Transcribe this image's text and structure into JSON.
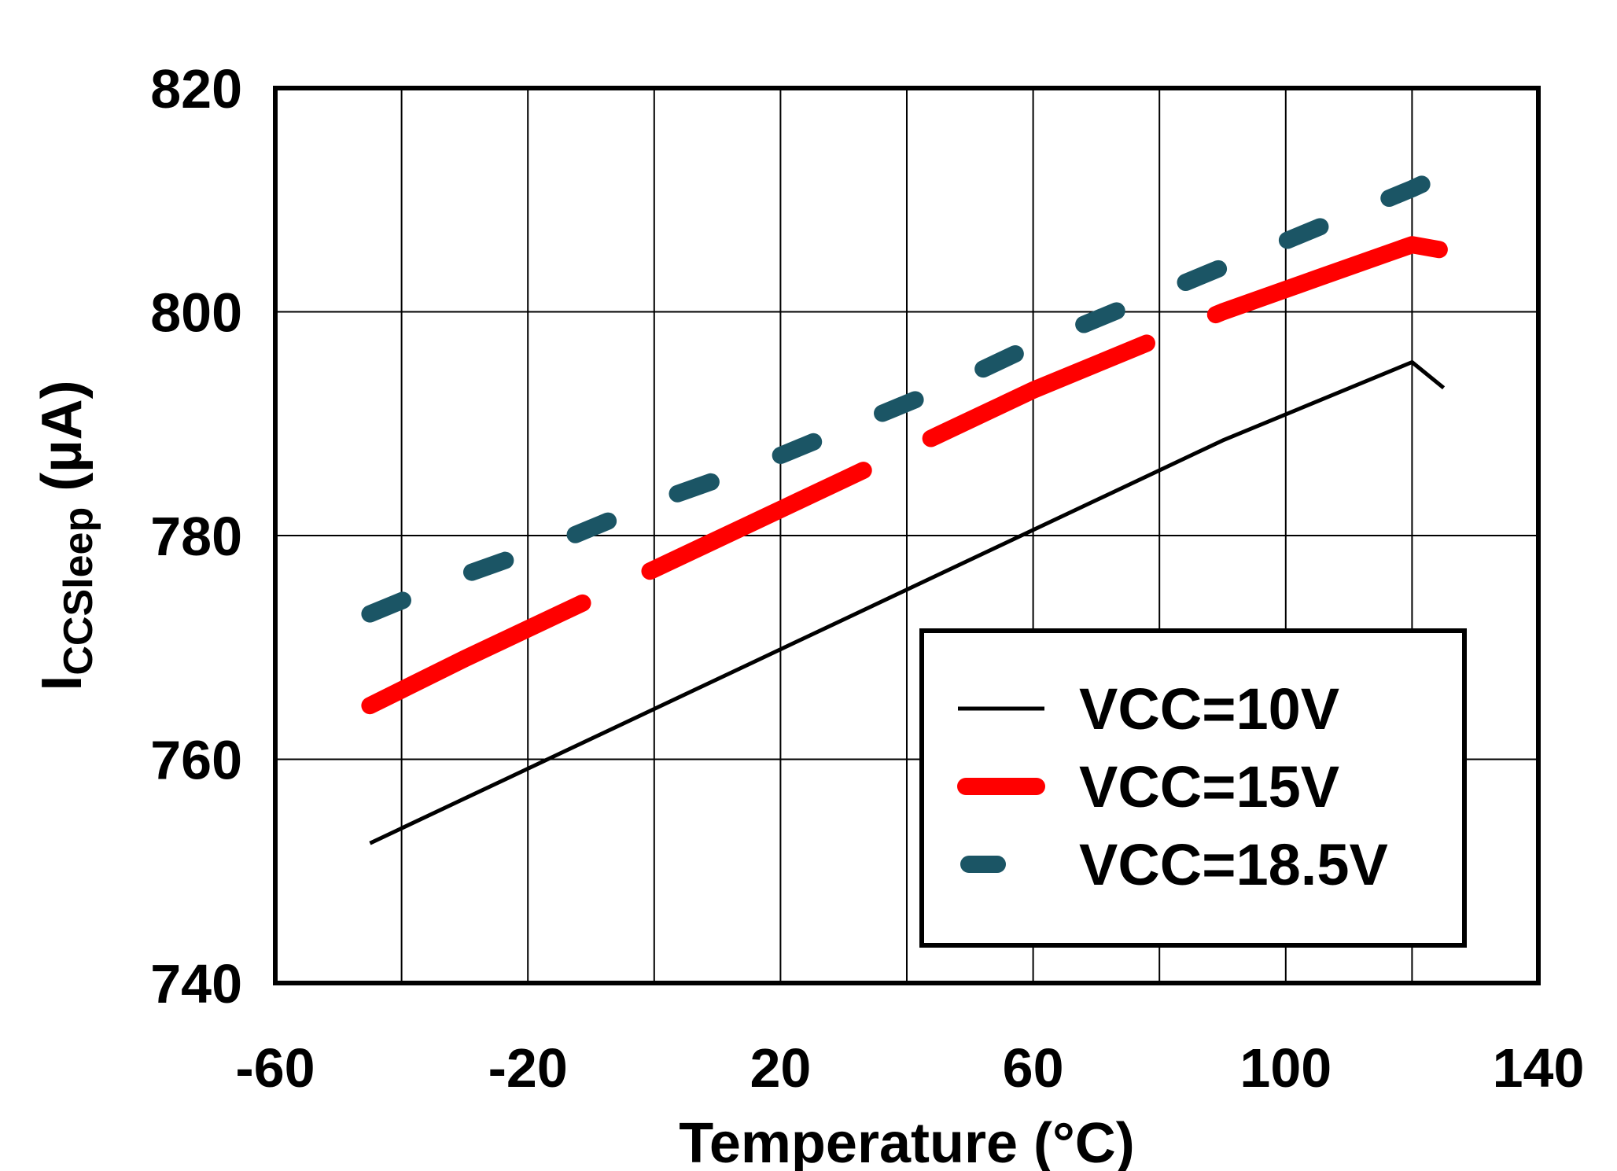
{
  "chart_data": {
    "type": "line",
    "xlabel": "Temperature (°C)",
    "ylabel_main": "I",
    "ylabel_sub": "CCSleep",
    "ylabel_unit": " (µA)",
    "xlim": [
      -60,
      140
    ],
    "ylim": [
      740,
      820
    ],
    "x_ticks": [
      -60,
      -20,
      20,
      60,
      100,
      140
    ],
    "y_ticks": [
      740,
      760,
      780,
      800,
      820
    ],
    "x_ticks_text": [
      "-60",
      "-20",
      "20",
      "60",
      "100",
      "140"
    ],
    "y_ticks_text": [
      "740",
      "760",
      "780",
      "800",
      "820"
    ],
    "x_gridlines": [
      -40,
      -20,
      0,
      20,
      40,
      60,
      80,
      100,
      120
    ],
    "y_gridlines": [
      760,
      780,
      800
    ],
    "grid": true,
    "legend_position": "lower-right",
    "x": [
      -45,
      -30,
      -15,
      0,
      15,
      30,
      45,
      60,
      75,
      90,
      105,
      120,
      125
    ],
    "series": [
      {
        "name": "VCC=10V",
        "style": "solid",
        "color": "#000000",
        "values": [
          752.5,
          756.5,
          760.5,
          764.5,
          768.5,
          772.5,
          776.5,
          780.5,
          784.5,
          788.5,
          792.0,
          795.5,
          793.2
        ]
      },
      {
        "name": "VCC=15V",
        "style": "dash",
        "color": "#ff0000",
        "values": [
          764.8,
          769.0,
          773.0,
          777.0,
          781.0,
          785.0,
          789.0,
          793.0,
          796.5,
          800.0,
          803.0,
          806.0,
          805.5
        ]
      },
      {
        "name": "VCC=18.5V",
        "style": "dot",
        "color": "#1b5565",
        "values": [
          773.0,
          776.5,
          779.5,
          783.0,
          786.0,
          789.5,
          793.0,
          797.0,
          800.5,
          804.0,
          807.5,
          811.0,
          812.3
        ]
      }
    ]
  }
}
